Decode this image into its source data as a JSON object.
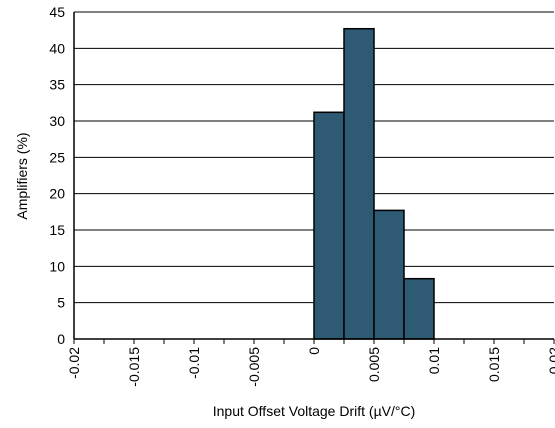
{
  "chart_data": {
    "type": "bar",
    "title": "",
    "xlabel": "Input Offset Voltage Drift (µV/°C)",
    "ylabel": "Amplifiers (%)",
    "ylim": [
      0,
      45
    ],
    "xlim": [
      -0.02,
      0.02
    ],
    "grid": true,
    "legend": "none",
    "bin_width": 0.0025,
    "y_ticks": [
      "0",
      "5",
      "10",
      "15",
      "20",
      "25",
      "30",
      "35",
      "40",
      "45"
    ],
    "x_ticks": [
      "-0.02",
      "-0.015",
      "-0.01",
      "-0.005",
      "0",
      "0.005",
      "0.01",
      "0.015",
      "0.02"
    ],
    "x_tick_values": [
      -0.02,
      -0.015,
      -0.01,
      -0.005,
      0,
      0.005,
      0.01,
      0.015,
      0.02
    ],
    "bins": [
      {
        "x": 0.00125,
        "value": 31.2
      },
      {
        "x": 0.00375,
        "value": 42.7
      },
      {
        "x": 0.00625,
        "value": 17.7
      },
      {
        "x": 0.00875,
        "value": 8.3
      }
    ],
    "colors": {
      "bar": "#2e5a74",
      "bar_edge": "#000000",
      "grid": "#000000"
    }
  }
}
